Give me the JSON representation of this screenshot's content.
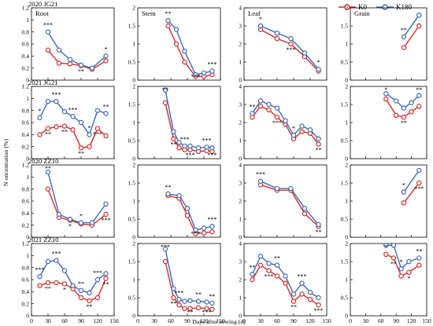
{
  "colors": {
    "K0": "#d42a2a",
    "K180": "#3d6ab5"
  },
  "legend": {
    "items": [
      {
        "name": "K0",
        "color": "#d42a2a"
      },
      {
        "name": "K180",
        "color": "#3d6ab5"
      }
    ]
  },
  "axes": {
    "ylabel": "N oncentration (%)",
    "xlabel": "Days after  sowing (d)",
    "xlim": [
      0,
      150
    ],
    "xticks": [
      "0",
      "30",
      "60",
      "90",
      "120",
      "150"
    ]
  },
  "column_titles": [
    "Root",
    "Stem",
    "Leaf",
    "Grain"
  ],
  "row_labels": [
    "2020 JG21",
    "2021 JG21",
    "2020 ZZ10",
    "2021 ZZ10"
  ],
  "yaxes": [
    {
      "ylim": [
        0,
        1.2
      ],
      "ticks": [
        "0",
        "0.2",
        "0.4",
        "0.6",
        "0.8",
        "1",
        "1.2"
      ]
    },
    {
      "ylim": [
        0,
        2
      ],
      "ticks": [
        "0",
        "0.5",
        "1",
        "1.5",
        "2"
      ]
    },
    {
      "ylim": [
        0,
        4
      ],
      "ticks": [
        "0",
        "1",
        "2",
        "3",
        "4"
      ]
    },
    {
      "ylim": [
        0,
        2
      ],
      "ticks": [
        "0",
        "0.5",
        "1",
        "1.5",
        "2"
      ]
    }
  ],
  "chart_data": [
    {
      "type": "line",
      "row": "2020 JG21",
      "panel": "Root",
      "x": [
        30,
        50,
        70,
        90,
        110,
        135
      ],
      "series": [
        {
          "name": "K0",
          "values": [
            0.5,
            0.28,
            0.27,
            0.24,
            0.18,
            0.32
          ]
        },
        {
          "name": "K180",
          "values": [
            0.8,
            0.5,
            0.34,
            0.25,
            0.2,
            0.4
          ]
        }
      ],
      "annotations": [
        "***",
        "**",
        "*"
      ]
    },
    {
      "type": "line",
      "row": "2020 JG21",
      "panel": "Stem",
      "x": [
        55,
        70,
        85,
        105,
        120,
        135
      ],
      "series": [
        {
          "name": "K0",
          "values": [
            1.5,
            1.0,
            0.5,
            0.1,
            0.1,
            0.15
          ]
        },
        {
          "name": "K180",
          "values": [
            1.65,
            1.4,
            0.8,
            0.15,
            0.2,
            0.25
          ]
        }
      ],
      "annotations": [
        "**",
        "***",
        "***"
      ]
    },
    {
      "type": "line",
      "row": "2020 JG21",
      "panel": "Leaf",
      "x": [
        30,
        60,
        85,
        110,
        135
      ],
      "series": [
        {
          "name": "K0",
          "values": [
            2.8,
            2.3,
            2.0,
            1.3,
            0.5
          ]
        },
        {
          "name": "K180",
          "values": [
            3.0,
            2.6,
            2.3,
            1.5,
            0.6
          ]
        }
      ],
      "annotations": [
        "*",
        "***",
        "*"
      ]
    },
    {
      "type": "line",
      "row": "2020 JG21",
      "panel": "Grain",
      "x": [
        105,
        135
      ],
      "series": [
        {
          "name": "K0",
          "values": [
            0.9,
            1.5
          ]
        },
        {
          "name": "K180",
          "values": [
            1.2,
            1.8
          ]
        }
      ],
      "annotations": [
        "**"
      ]
    },
    {
      "type": "line",
      "row": "2021 JG21",
      "panel": "Root",
      "x": [
        15,
        30,
        45,
        60,
        75,
        90,
        105,
        120,
        135
      ],
      "series": [
        {
          "name": "K0",
          "values": [
            0.4,
            0.5,
            0.53,
            0.54,
            0.48,
            0.18,
            0.2,
            0.5,
            0.38
          ]
        },
        {
          "name": "K180",
          "values": [
            0.68,
            0.95,
            0.95,
            0.78,
            0.7,
            0.6,
            0.4,
            0.8,
            0.75
          ]
        }
      ],
      "annotations": [
        "*",
        "**",
        "***",
        "**",
        "***",
        "**",
        "*",
        "***",
        "**"
      ]
    },
    {
      "type": "line",
      "row": "2021 JG21",
      "panel": "Stem",
      "x": [
        50,
        65,
        75,
        85,
        95,
        110,
        125,
        135
      ],
      "series": [
        {
          "name": "K0",
          "values": [
            1.55,
            0.55,
            0.3,
            0.25,
            0.25,
            0.2,
            0.22,
            0.2
          ]
        },
        {
          "name": "K180",
          "values": [
            1.9,
            0.75,
            0.45,
            0.35,
            0.35,
            0.3,
            0.32,
            0.3
          ]
        }
      ],
      "annotations": [
        "**",
        "**",
        "***",
        "***",
        "***",
        "***"
      ]
    },
    {
      "type": "line",
      "row": "2021 JG21",
      "panel": "Leaf",
      "x": [
        15,
        30,
        45,
        60,
        75,
        90,
        105,
        120,
        135
      ],
      "series": [
        {
          "name": "K0",
          "values": [
            2.3,
            2.9,
            2.7,
            2.3,
            1.9,
            1.1,
            1.5,
            1.4,
            0.8
          ]
        },
        {
          "name": "K180",
          "values": [
            2.5,
            3.2,
            3.0,
            2.8,
            2.1,
            1.3,
            1.8,
            1.6,
            1.1
          ]
        }
      ],
      "annotations": [
        "**",
        "***",
        "*",
        "**"
      ]
    },
    {
      "type": "line",
      "row": "2021 JG21",
      "panel": "Grain",
      "x": [
        70,
        90,
        105,
        120,
        135
      ],
      "series": [
        {
          "name": "K0",
          "values": [
            1.65,
            1.2,
            1.15,
            1.3,
            1.45
          ]
        },
        {
          "name": "K180",
          "values": [
            1.8,
            1.6,
            1.4,
            1.55,
            1.75
          ]
        }
      ],
      "annotations": [
        "*",
        "**",
        "**"
      ]
    },
    {
      "type": "line",
      "row": "2020 ZZ10",
      "panel": "Root",
      "x": [
        30,
        50,
        70,
        90,
        110,
        135
      ],
      "series": [
        {
          "name": "K0",
          "values": [
            0.8,
            0.33,
            0.28,
            0.22,
            0.2,
            0.38
          ]
        },
        {
          "name": "K180",
          "values": [
            1.08,
            0.38,
            0.3,
            0.24,
            0.24,
            0.55
          ]
        }
      ],
      "annotations": [
        "**",
        "*",
        "*",
        "***"
      ]
    },
    {
      "type": "line",
      "row": "2020 ZZ10",
      "panel": "Stem",
      "x": [
        55,
        75,
        90,
        105,
        120,
        135
      ],
      "series": [
        {
          "name": "K0",
          "values": [
            1.15,
            1.08,
            0.6,
            0.1,
            0.12,
            0.15
          ]
        },
        {
          "name": "K180",
          "values": [
            1.2,
            1.15,
            0.8,
            0.2,
            0.25,
            0.3
          ]
        }
      ],
      "annotations": [
        "**",
        "***",
        "***"
      ]
    },
    {
      "type": "line",
      "row": "2020 ZZ10",
      "panel": "Leaf",
      "x": [
        30,
        60,
        85,
        110,
        135
      ],
      "series": [
        {
          "name": "K0",
          "values": [
            2.9,
            2.6,
            2.6,
            1.3,
            0.6
          ]
        },
        {
          "name": "K180",
          "values": [
            3.1,
            2.7,
            2.7,
            1.6,
            0.7
          ]
        }
      ],
      "annotations": [
        "***",
        "**"
      ]
    },
    {
      "type": "line",
      "row": "2020 ZZ10",
      "panel": "Grain",
      "x": [
        105,
        135
      ],
      "series": [
        {
          "name": "K0",
          "values": [
            0.95,
            1.5
          ]
        },
        {
          "name": "K180",
          "values": [
            1.25,
            1.85
          ]
        }
      ],
      "annotations": [
        "*",
        "***"
      ]
    },
    {
      "type": "line",
      "row": "2021 ZZ10",
      "panel": "Root",
      "x": [
        15,
        30,
        45,
        60,
        75,
        90,
        105,
        120,
        135
      ],
      "series": [
        {
          "name": "K0",
          "values": [
            0.5,
            0.55,
            0.55,
            0.53,
            0.45,
            0.3,
            0.25,
            0.3,
            0.62
          ]
        },
        {
          "name": "K180",
          "values": [
            0.65,
            0.9,
            0.92,
            0.75,
            0.5,
            0.42,
            0.38,
            0.6,
            0.7
          ]
        }
      ],
      "annotations": [
        "***",
        "**",
        "***",
        "*",
        "**",
        "**",
        "***",
        "**"
      ]
    },
    {
      "type": "line",
      "row": "2021 ZZ10",
      "panel": "Stem",
      "x": [
        50,
        65,
        75,
        85,
        95,
        110,
        125,
        135
      ],
      "series": [
        {
          "name": "K0",
          "values": [
            1.5,
            0.5,
            0.3,
            0.2,
            0.2,
            0.22,
            0.2,
            0.18
          ]
        },
        {
          "name": "K180",
          "values": [
            1.85,
            0.75,
            0.45,
            0.4,
            0.42,
            0.4,
            0.38,
            0.35
          ]
        }
      ],
      "annotations": [
        "***",
        "**",
        "***",
        "**",
        "**",
        "***",
        "**"
      ]
    },
    {
      "type": "line",
      "row": "2021 ZZ10",
      "panel": "Leaf",
      "x": [
        15,
        30,
        45,
        60,
        75,
        90,
        105,
        120,
        135
      ],
      "series": [
        {
          "name": "K0",
          "values": [
            2.0,
            2.8,
            2.5,
            2.2,
            1.8,
            0.8,
            1.2,
            0.9,
            0.6
          ]
        },
        {
          "name": "K180",
          "values": [
            2.3,
            3.3,
            2.9,
            2.8,
            2.2,
            1.2,
            1.8,
            1.3,
            1.0
          ]
        }
      ],
      "annotations": [
        "**",
        "***",
        "**",
        "**",
        "***",
        "***"
      ]
    },
    {
      "type": "line",
      "row": "2021 ZZ10",
      "panel": "Grain",
      "x": [
        70,
        85,
        100,
        115,
        135
      ],
      "series": [
        {
          "name": "K0",
          "values": [
            1.7,
            1.6,
            1.1,
            1.2,
            1.4
          ]
        },
        {
          "name": "K180",
          "values": [
            1.95,
            1.95,
            1.3,
            1.5,
            1.6
          ]
        }
      ],
      "annotations": [
        "*",
        "**",
        "*",
        "*",
        "**"
      ]
    }
  ]
}
